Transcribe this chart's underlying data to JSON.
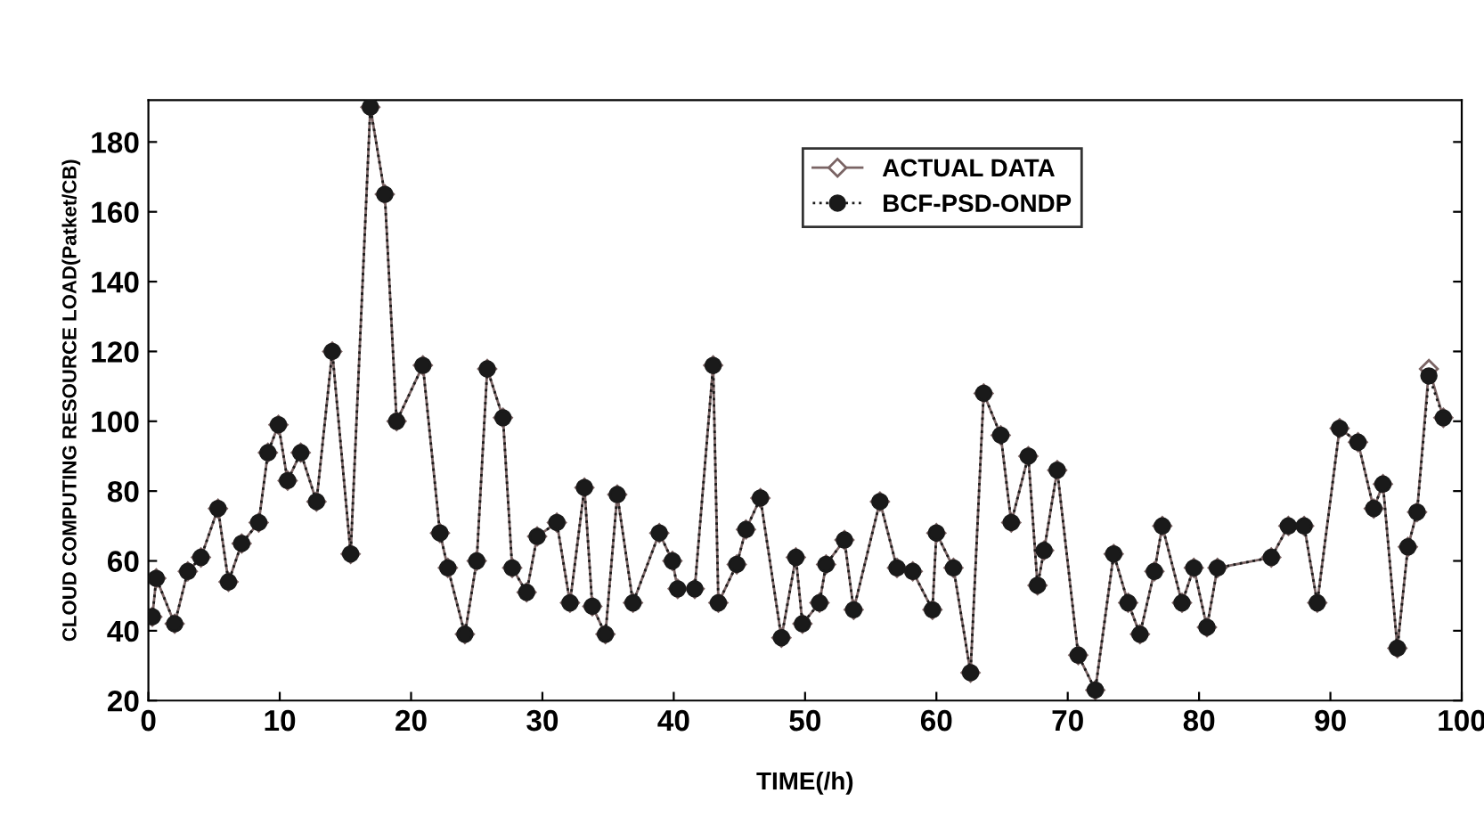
{
  "chart_data": {
    "type": "line",
    "xlabel": "TIME(/h)",
    "ylabel": "CLOUD COMPUTING RESOURCE LOAD(Patket/CB)",
    "xlim": [
      0,
      100
    ],
    "ylim": [
      20,
      192
    ],
    "xticks": [
      0,
      10,
      20,
      30,
      40,
      50,
      60,
      70,
      80,
      90,
      100
    ],
    "yticks": [
      20,
      40,
      60,
      80,
      100,
      120,
      140,
      160,
      180
    ],
    "x": [
      0.3,
      0.6,
      2,
      3,
      4,
      5.3,
      6.1,
      7.1,
      8.4,
      9.1,
      9.9,
      10.6,
      11.6,
      12.8,
      14,
      15.4,
      16.9,
      18,
      18.9,
      20.9,
      22.2,
      22.8,
      24.1,
      25,
      25.8,
      27,
      27.7,
      28.8,
      29.6,
      31.1,
      32.1,
      33.2,
      33.8,
      34.8,
      35.7,
      36.9,
      38.9,
      39.9,
      40.3,
      41.6,
      43,
      43.4,
      44.8,
      45.5,
      46.6,
      48.2,
      49.3,
      49.8,
      51.1,
      51.6,
      53,
      53.7,
      55.7,
      57,
      58.2,
      59.7,
      60,
      61.3,
      62.6,
      63.6,
      64.9,
      65.7,
      67,
      67.7,
      68.2,
      69.2,
      70.8,
      72.1,
      73.5,
      74.6,
      75.5,
      76.6,
      77.2,
      78.7,
      79.6,
      80.6,
      81.4,
      85.5,
      86.8,
      88,
      89,
      90.7,
      92.1,
      93.3,
      94,
      95.1,
      95.9,
      96.6,
      97.5,
      98.6
    ],
    "series": [
      {
        "name": "ACTUAL DATA",
        "color": "#7a6464",
        "marker": "diamond",
        "line_style": "solid",
        "values": [
          44,
          55,
          42,
          57,
          61,
          75,
          54,
          65,
          71,
          91,
          99,
          83,
          91,
          77,
          120,
          62,
          190,
          165,
          100,
          116,
          68,
          58,
          39,
          60,
          115,
          101,
          58,
          51,
          67,
          71,
          48,
          81,
          47,
          39,
          79,
          48,
          68,
          60,
          52,
          52,
          116,
          48,
          59,
          69,
          78,
          38,
          61,
          42,
          48,
          59,
          66,
          46,
          77,
          58,
          57,
          46,
          68,
          58,
          28,
          108,
          96,
          71,
          90,
          53,
          63,
          86,
          33,
          23,
          62,
          48,
          39,
          57,
          70,
          48,
          58,
          41,
          58,
          61,
          70,
          70,
          48,
          98,
          94,
          75,
          82,
          35,
          64,
          74,
          115,
          101
        ]
      },
      {
        "name": "BCF-PSD-ONDP",
        "color": "#1a1a1a",
        "marker": "circle",
        "line_style": "dotted",
        "values": [
          44,
          55,
          42,
          57,
          61,
          75,
          54,
          65,
          71,
          91,
          99,
          83,
          91,
          77,
          120,
          62,
          190,
          165,
          100,
          116,
          68,
          58,
          39,
          60,
          115,
          101,
          58,
          51,
          67,
          71,
          48,
          81,
          47,
          39,
          79,
          48,
          68,
          60,
          52,
          52,
          116,
          48,
          59,
          69,
          78,
          38,
          61,
          42,
          48,
          59,
          66,
          46,
          77,
          58,
          57,
          46,
          68,
          58,
          28,
          108,
          96,
          71,
          90,
          53,
          63,
          86,
          33,
          23,
          62,
          48,
          39,
          57,
          70,
          48,
          58,
          41,
          58,
          61,
          70,
          70,
          48,
          98,
          94,
          75,
          82,
          35,
          64,
          74,
          113,
          101
        ]
      }
    ],
    "legend": "top right",
    "grid": false
  }
}
